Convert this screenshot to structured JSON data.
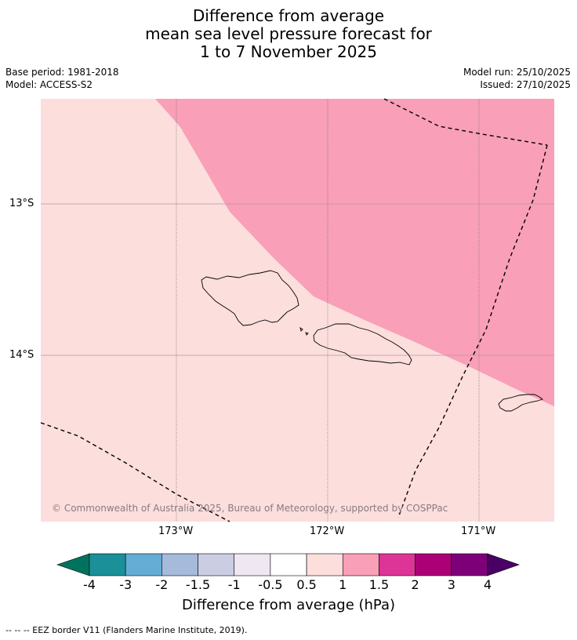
{
  "title": {
    "line1": "Difference from average",
    "line2": "mean sea level pressure forecast for",
    "line3": "1 to 7 November 2025"
  },
  "meta": {
    "base_period": "Base period: 1981-2018",
    "model": "Model: ACCESS-S2",
    "model_run": "Model run: 25/10/2025",
    "issued": "Issued: 27/10/2025"
  },
  "map": {
    "y_ticks": [
      "13°S",
      "14°S"
    ],
    "x_ticks": [
      "173°W",
      "172°W",
      "171°W"
    ],
    "copyright": "© Commonwealth of Australia 2025, Bureau of Meteorology, supported by COSPPac",
    "fill_colors": {
      "range_0_5_to_1": "#fcdedd",
      "range_1_to_1_5": "#f99fb8"
    },
    "ocean_extent": {
      "lon": [
        -173.9,
        -170.5
      ],
      "lat": [
        -12.3,
        -15.1
      ]
    }
  },
  "colorbar": {
    "labels": [
      "-4",
      "-3",
      "-2",
      "-1.5",
      "-1",
      "-0.5",
      "0.5",
      "1",
      "1.5",
      "2",
      "3",
      "4"
    ],
    "colors": [
      "#1b9098",
      "#66add5",
      "#a6badb",
      "#cbcde3",
      "#efe8f2",
      "#ffffff",
      "#fcdedd",
      "#f99fb8",
      "#dc3597",
      "#ac0077",
      "#7e0079"
    ],
    "under_color": "#00735f",
    "over_color": "#4a0065",
    "title": "Difference from average (hPa)"
  },
  "footer": "--  --  -- EEZ border V11 (Flanders Marine Institute, 2019)."
}
